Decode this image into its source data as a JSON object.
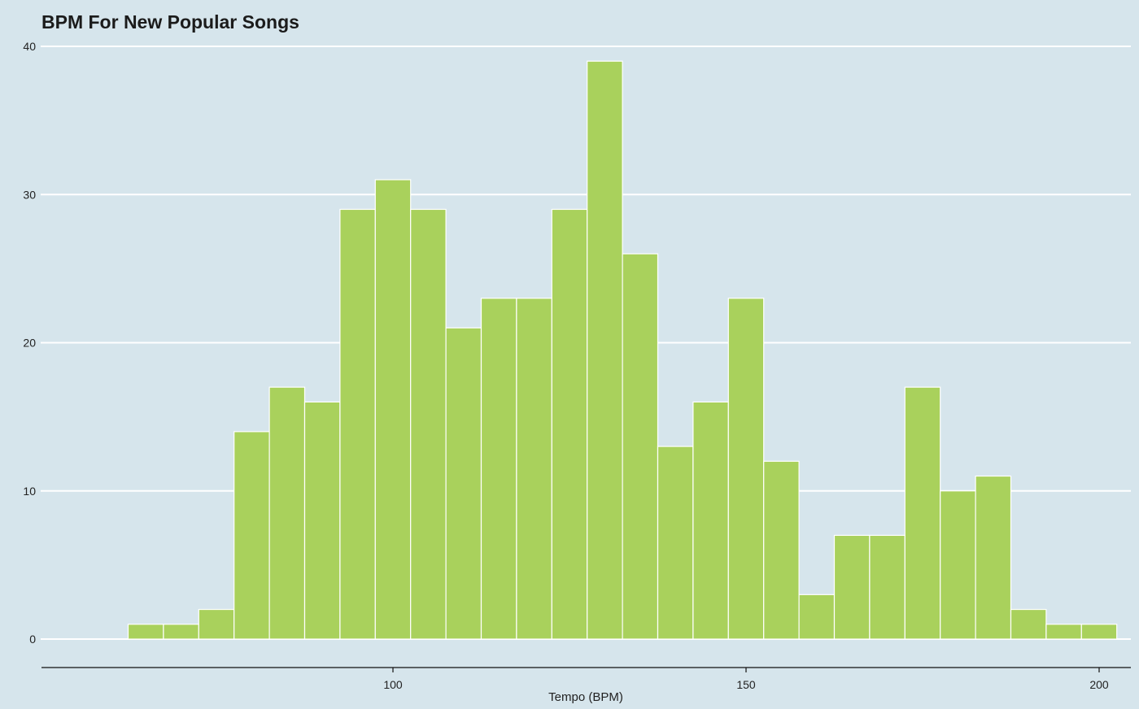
{
  "chart_data": {
    "type": "bar",
    "title": "BPM For New Popular Songs",
    "xlabel": "Tempo (BPM)",
    "ylabel": "",
    "bin_width": 5,
    "bins": [
      {
        "x0": 62.5,
        "x1": 67.5,
        "count": 1
      },
      {
        "x0": 67.5,
        "x1": 72.5,
        "count": 1
      },
      {
        "x0": 72.5,
        "x1": 77.5,
        "count": 2
      },
      {
        "x0": 77.5,
        "x1": 82.5,
        "count": 14
      },
      {
        "x0": 82.5,
        "x1": 87.5,
        "count": 17
      },
      {
        "x0": 87.5,
        "x1": 92.5,
        "count": 16
      },
      {
        "x0": 92.5,
        "x1": 97.5,
        "count": 29
      },
      {
        "x0": 97.5,
        "x1": 102.5,
        "count": 31
      },
      {
        "x0": 102.5,
        "x1": 107.5,
        "count": 29
      },
      {
        "x0": 107.5,
        "x1": 112.5,
        "count": 21
      },
      {
        "x0": 112.5,
        "x1": 117.5,
        "count": 23
      },
      {
        "x0": 117.5,
        "x1": 122.5,
        "count": 23
      },
      {
        "x0": 122.5,
        "x1": 127.5,
        "count": 29
      },
      {
        "x0": 127.5,
        "x1": 132.5,
        "count": 39
      },
      {
        "x0": 132.5,
        "x1": 137.5,
        "count": 26
      },
      {
        "x0": 137.5,
        "x1": 142.5,
        "count": 13
      },
      {
        "x0": 142.5,
        "x1": 147.5,
        "count": 16
      },
      {
        "x0": 147.5,
        "x1": 152.5,
        "count": 23
      },
      {
        "x0": 152.5,
        "x1": 157.5,
        "count": 12
      },
      {
        "x0": 157.5,
        "x1": 162.5,
        "count": 3
      },
      {
        "x0": 162.5,
        "x1": 167.5,
        "count": 7
      },
      {
        "x0": 167.5,
        "x1": 172.5,
        "count": 7
      },
      {
        "x0": 172.5,
        "x1": 177.5,
        "count": 17
      },
      {
        "x0": 177.5,
        "x1": 182.5,
        "count": 10
      },
      {
        "x0": 182.5,
        "x1": 187.5,
        "count": 11
      },
      {
        "x0": 187.5,
        "x1": 192.5,
        "count": 2
      },
      {
        "x0": 192.5,
        "x1": 197.5,
        "count": 1
      },
      {
        "x0": 197.5,
        "x1": 202.5,
        "count": 1
      }
    ],
    "xlim": [
      50,
      205
    ],
    "ylim": [
      0,
      40
    ],
    "xticks": [
      100,
      150,
      200
    ],
    "yticks": [
      0,
      10,
      20,
      30,
      40
    ],
    "grid": "horizontal",
    "legend": "none",
    "colors": {
      "bar_fill": "#a9d15c",
      "bar_edge": "#ffffff",
      "background": "#d6e5ec",
      "grid": "#ffffff",
      "axis": "#111111"
    }
  }
}
